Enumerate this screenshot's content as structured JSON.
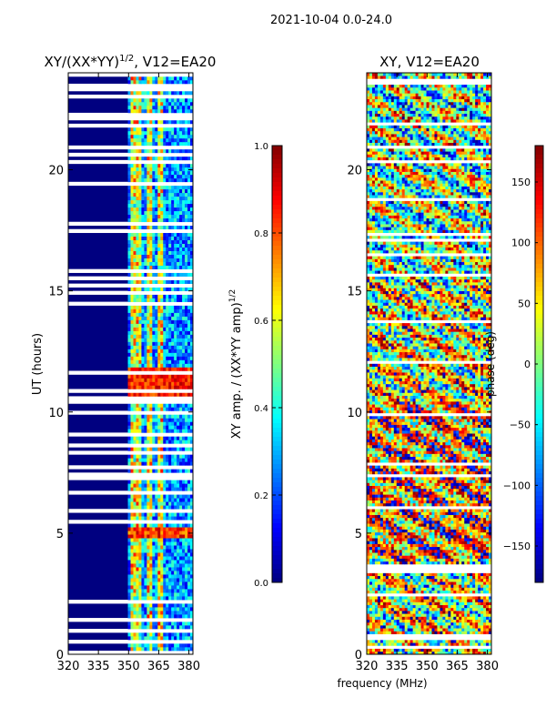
{
  "chart_data": [
    {
      "type": "heatmap",
      "suptitle": "2021-10-04 0.0-24.0",
      "title_main": "XY/(XX*YY)",
      "title_sup": "1/2",
      "title_suffix": ", V12=EA20",
      "ylabel": "UT (hours)",
      "xlim": [
        320,
        382
      ],
      "ylim": [
        0,
        24
      ],
      "xticks": [
        320,
        335,
        350,
        365,
        380
      ],
      "yticks": [
        0,
        5,
        10,
        15,
        20
      ],
      "colorbar": {
        "label_main": "XY amp. / (XX*YY amp)",
        "label_sup": "1/2",
        "range": [
          0.0,
          1.0
        ],
        "ticks": [
          "0.0",
          "0.2",
          "0.4",
          "0.6",
          "0.8",
          "1.0"
        ]
      }
    },
    {
      "type": "heatmap",
      "title": "XY, V12=EA20",
      "xlabel": "frequency (MHz)",
      "xlim": [
        320,
        382
      ],
      "ylim": [
        0,
        24
      ],
      "xticks": [
        320,
        335,
        350,
        365,
        380
      ],
      "yticks": [
        0,
        5,
        10,
        15,
        20
      ],
      "colorbar": {
        "label": "phase (deg)",
        "range": [
          -180,
          180
        ],
        "ticks": [
          "150",
          "100",
          "50",
          "0",
          "−50",
          "−100",
          "−150"
        ]
      }
    }
  ],
  "colors": {
    "jet_low": "#000080",
    "jet_high": "#800000",
    "axis": "#000000"
  }
}
